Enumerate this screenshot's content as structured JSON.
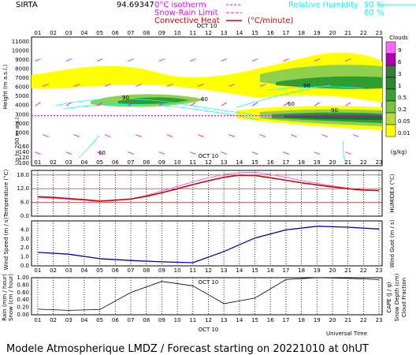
{
  "header": {
    "station": "SIRTA",
    "coords": "94.69347",
    "isotherm_label": "0°C isotherm",
    "snow_rain_label": "Snow-Rain Limit",
    "convective_label": "Convective Heat",
    "convective_unit": "(°C/minute)",
    "rh_label": "Relative Humidity",
    "rh_90": "90 %",
    "rh_60": "60 %"
  },
  "date_label": "OCT 10",
  "footer": {
    "model": "Modele Atmospherique LMDZ / Forecast starting on 20221010 at 0hUT",
    "universal_time": "Universal Time"
  },
  "colors": {
    "cloud_yellow": "#ffff00",
    "cloud_light_green": "#8fd14f",
    "cloud_green": "#2e9e2e",
    "cloud_dark_green": "#1f6b3a",
    "humidity_cyan": "#00ffff",
    "wind_arrow": "#ff00ff",
    "temperature": "#dd0000",
    "humidex": "#ee66ee",
    "wind": "#0000cc",
    "cape": "#000000"
  },
  "chart_data": [
    {
      "type": "heatmap",
      "name": "clouds",
      "hours": [
        "01",
        "02",
        "03",
        "04",
        "05",
        "06",
        "07",
        "08",
        "09",
        "10",
        "11",
        "12",
        "13",
        "14",
        "15",
        "16",
        "17",
        "18",
        "19",
        "20",
        "21",
        "22",
        "23"
      ],
      "ylabel": "Height (m a.s.l.)",
      "ylabel2": "Up to 200 m a.s.l.",
      "yticks_upper": [
        11000,
        10000,
        9000,
        8000,
        7000,
        6000,
        5000,
        4000,
        3000,
        2000,
        1000
      ],
      "yticks_lower": [
        160,
        140,
        120,
        100
      ],
      "legend_title": "Clouds",
      "legend_unit": "(g/kg)",
      "legend_levels": [
        "9",
        "6",
        "3",
        "1",
        "0.5",
        "0.2",
        "0.05",
        "0.01"
      ],
      "legend_colors": [
        "#ff66ff",
        "#b000b0",
        "#3a7a3a",
        "#2a8a2a",
        "#3aa03a",
        "#7cc040",
        "#b8dc3a",
        "#ffff00"
      ],
      "humidity_labels": [
        "90",
        "60"
      ],
      "zero_isotherm_height": 2900
    },
    {
      "type": "line",
      "name": "temperature",
      "x": [
        1,
        2,
        3,
        4,
        5,
        6,
        7,
        8,
        9,
        10,
        11,
        12,
        13,
        14,
        15,
        16,
        17,
        18,
        19,
        20,
        21,
        22,
        23
      ],
      "series": [
        {
          "name": "Temperature",
          "values": [
            8.5,
            8.2,
            7.7,
            7.2,
            6.6,
            7.0,
            7.5,
            8.7,
            10.2,
            12.0,
            13.8,
            15.5,
            17.0,
            17.9,
            17.8,
            16.8,
            15.7,
            14.6,
            13.7,
            12.8,
            12.0,
            11.4,
            11.2
          ]
        },
        {
          "name": "HUMIDEX",
          "values": [
            8.0,
            7.8,
            7.4,
            7.0,
            6.4,
            6.9,
            7.6,
            9.0,
            11.0,
            13.0,
            15.0,
            16.8,
            18.2,
            19.0,
            19.2,
            18.2,
            17.0,
            15.6,
            14.4,
            13.2,
            12.2,
            11.4,
            11.0
          ]
        }
      ],
      "ylabel": "Temperature (°C)",
      "ylabel2": "HUMIDEX (°C)",
      "yticks": [
        "18.0",
        "12.0",
        "6.0",
        "0.0"
      ],
      "ylim": [
        0,
        20
      ]
    },
    {
      "type": "line",
      "name": "wind",
      "x": [
        1,
        3,
        5,
        7,
        9,
        11,
        13,
        15,
        17,
        19,
        21,
        23
      ],
      "series": [
        {
          "name": "Wind Speed",
          "values": [
            1.5,
            1.3,
            0.8,
            0.6,
            0.45,
            0.35,
            1.6,
            3.1,
            4.0,
            4.4,
            4.3,
            4.1
          ]
        }
      ],
      "ylabel": "Wind Speed (m / s)",
      "ylabel2": "Wind Gust (m / s)",
      "yticks": [
        "4.0",
        "3.0",
        "2.0",
        "1.0",
        "0.0"
      ],
      "ylim": [
        0,
        5
      ]
    },
    {
      "type": "line",
      "name": "precipitation",
      "x": [
        1,
        3,
        5,
        7,
        9,
        11,
        13,
        15,
        17,
        19,
        21,
        23
      ],
      "series": [
        {
          "name": "CAPE",
          "values": [
            0.15,
            0.12,
            0.14,
            0.6,
            0.9,
            0.78,
            0.3,
            0.45,
            0.95,
            1.0,
            0.98,
            0.95
          ]
        }
      ],
      "ylabel": "Rain (mm / hour)",
      "ylabel_b": "Snow (cm / hour)",
      "ylabel2": "CAPE (J / g)",
      "ylabel2_b": "Snow Depth (cm)",
      "ylabel2_c": "Cloud Fraction",
      "yticks": [
        "1.00",
        "0.80",
        "0.60",
        "0.40",
        "0.20",
        "0.00"
      ],
      "ylim": [
        0,
        1
      ]
    }
  ]
}
